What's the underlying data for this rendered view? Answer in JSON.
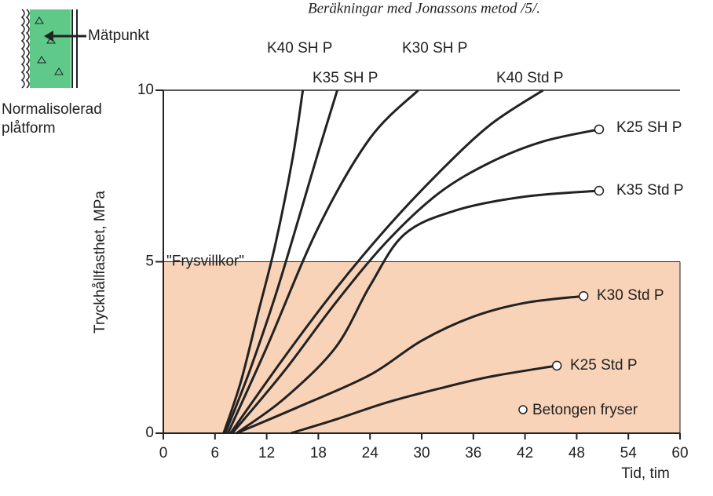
{
  "chart_data": {
    "type": "line",
    "title": "Beräkningar med Jonassons metod /5/.",
    "y_label": "Tryckhållfasthet, MPa",
    "x_label": "Tid, tim",
    "annotations": [
      "\"Frysvillkor\"",
      "Mätpunkt",
      "Normalisolerad plåtform"
    ],
    "legend": "Betongen fryser",
    "xlim": [
      0,
      60
    ],
    "ylim": [
      0,
      10
    ],
    "xticks": [
      0,
      6,
      12,
      18,
      24,
      30,
      36,
      42,
      48,
      54,
      60
    ],
    "yticks": [
      0,
      5,
      10
    ],
    "series": [
      {
        "name": "K40 SH P",
        "color": "#222222",
        "x": [
          7,
          9,
          11,
          13,
          15,
          16.2
        ],
        "values": [
          0,
          1.5,
          3.5,
          5.5,
          8,
          10
        ]
      },
      {
        "name": "K35 SH P",
        "color": "#222222",
        "x": [
          7.2,
          10,
          13,
          16,
          18,
          20.2
        ],
        "values": [
          0,
          1.8,
          4,
          6.5,
          8.2,
          10
        ]
      },
      {
        "name": "K30 SH P",
        "color": "#222222",
        "x": [
          7.5,
          12,
          18,
          24,
          29.6
        ],
        "values": [
          0,
          2.5,
          6,
          8.6,
          10
        ]
      },
      {
        "name": "K40 Std P",
        "color": "#222222",
        "x": [
          7.8,
          14,
          20,
          26,
          32,
          38,
          44.1
        ],
        "values": [
          0,
          2.2,
          4.2,
          6,
          7.6,
          9,
          10
        ]
      },
      {
        "name": "K25 SH P",
        "color": "#222222",
        "x": [
          8,
          14,
          20,
          26,
          32,
          38,
          44,
          50.6
        ],
        "values": [
          0,
          1.8,
          3.8,
          5.6,
          7,
          7.9,
          8.5,
          8.86
        ]
      },
      {
        "name": "K35 Std P",
        "color": "#222222",
        "x": [
          8.5,
          14,
          20,
          24,
          28,
          34,
          42,
          50.6
        ],
        "values": [
          0,
          1,
          2.5,
          4.3,
          5.8,
          6.5,
          6.9,
          7.07
        ]
      },
      {
        "name": "K30 Std P",
        "color": "#222222",
        "x": [
          8.5,
          16,
          24,
          30,
          36,
          42,
          48.8
        ],
        "values": [
          0,
          0.8,
          1.7,
          2.7,
          3.4,
          3.8,
          4.0
        ]
      },
      {
        "name": "K25 Std P",
        "color": "#222222",
        "x": [
          14.8,
          20,
          26,
          32,
          38,
          45.7
        ],
        "values": [
          0,
          0.4,
          0.9,
          1.3,
          1.65,
          1.97
        ]
      }
    ]
  }
}
